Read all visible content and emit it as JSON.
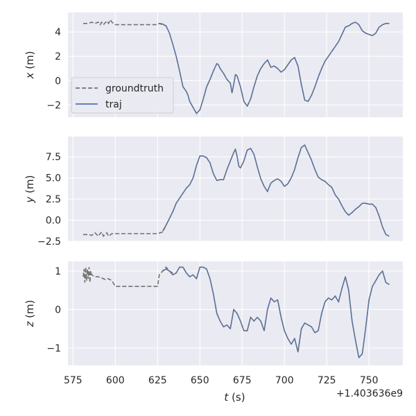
{
  "colors": {
    "panel_bg": "#EAEAF2",
    "grid": "#FFFFFF",
    "groundtruth": "#707070",
    "traj": "#4C72B0",
    "legend_bg": "#EAEAF2",
    "legend_border": "#CCCCCC"
  },
  "chart_data": {
    "type": "line",
    "shared_x": {
      "label": "t (s)",
      "offset_label": "+1.403636e9",
      "ticks": [
        575,
        600,
        625,
        650,
        675,
        700,
        725,
        750
      ],
      "range": [
        572,
        770
      ]
    },
    "legend": {
      "placement": "lower-left",
      "entries": [
        "groundtruth",
        "traj"
      ]
    },
    "panels": [
      {
        "ylabel": "x (m)",
        "yrange": [
          -3.0,
          5.6
        ],
        "yticks": [
          4,
          2,
          0,
          -2
        ],
        "groundtruth": [
          [
            581,
            4.7
          ],
          [
            584,
            4.7
          ],
          [
            586,
            4.8
          ],
          [
            588,
            4.7
          ],
          [
            590,
            4.8
          ],
          [
            591,
            4.6
          ],
          [
            592,
            4.8
          ],
          [
            593,
            4.6
          ],
          [
            595,
            4.9
          ],
          [
            596,
            4.7
          ],
          [
            597,
            5.0
          ],
          [
            598,
            4.8
          ],
          [
            600,
            4.6
          ],
          [
            610,
            4.6
          ],
          [
            620,
            4.6
          ],
          [
            625,
            4.6
          ],
          [
            626,
            4.7
          ],
          [
            628,
            4.6
          ],
          [
            630,
            4.5
          ]
        ],
        "traj": [
          [
            626,
            4.7
          ],
          [
            628,
            4.65
          ],
          [
            630,
            4.5
          ],
          [
            632,
            3.9
          ],
          [
            634,
            3.0
          ],
          [
            636,
            2.0
          ],
          [
            638,
            0.8
          ],
          [
            640,
            -0.5
          ],
          [
            642,
            -0.9
          ],
          [
            643,
            -1.2
          ],
          [
            644,
            -1.7
          ],
          [
            646,
            -2.2
          ],
          [
            648,
            -2.7
          ],
          [
            650,
            -2.4
          ],
          [
            652,
            -1.5
          ],
          [
            654,
            -0.5
          ],
          [
            656,
            0.1
          ],
          [
            658,
            0.8
          ],
          [
            660,
            1.4
          ],
          [
            661,
            1.3
          ],
          [
            662,
            1.0
          ],
          [
            664,
            0.6
          ],
          [
            666,
            0.1
          ],
          [
            668,
            -0.2
          ],
          [
            669,
            -1.0
          ],
          [
            670,
            -0.3
          ],
          [
            671,
            0.5
          ],
          [
            672,
            0.4
          ],
          [
            674,
            -0.5
          ],
          [
            676,
            -1.7
          ],
          [
            678,
            -2.1
          ],
          [
            680,
            -1.5
          ],
          [
            682,
            -0.5
          ],
          [
            684,
            0.4
          ],
          [
            686,
            1.0
          ],
          [
            688,
            1.4
          ],
          [
            690,
            1.7
          ],
          [
            692,
            1.1
          ],
          [
            694,
            1.2
          ],
          [
            696,
            1.0
          ],
          [
            698,
            0.7
          ],
          [
            700,
            0.9
          ],
          [
            702,
            1.3
          ],
          [
            704,
            1.7
          ],
          [
            706,
            1.9
          ],
          [
            708,
            1.2
          ],
          [
            710,
            -0.3
          ],
          [
            712,
            -1.6
          ],
          [
            714,
            -1.7
          ],
          [
            716,
            -1.2
          ],
          [
            718,
            -0.5
          ],
          [
            720,
            0.3
          ],
          [
            722,
            1.0
          ],
          [
            724,
            1.6
          ],
          [
            726,
            2.0
          ],
          [
            728,
            2.4
          ],
          [
            730,
            2.8
          ],
          [
            732,
            3.2
          ],
          [
            734,
            3.8
          ],
          [
            736,
            4.4
          ],
          [
            738,
            4.5
          ],
          [
            740,
            4.7
          ],
          [
            742,
            4.8
          ],
          [
            744,
            4.6
          ],
          [
            746,
            4.1
          ],
          [
            748,
            3.9
          ],
          [
            750,
            3.8
          ],
          [
            752,
            3.7
          ],
          [
            754,
            3.9
          ],
          [
            756,
            4.4
          ],
          [
            758,
            4.6
          ],
          [
            760,
            4.7
          ],
          [
            762,
            4.7
          ]
        ]
      },
      {
        "ylabel": "y (m)",
        "yrange": [
          -2.5,
          9.9
        ],
        "yticks": [
          7.5,
          5.0,
          2.5,
          0.0,
          -2.5
        ],
        "groundtruth": [
          [
            581,
            -1.7
          ],
          [
            584,
            -1.7
          ],
          [
            586,
            -1.8
          ],
          [
            588,
            -1.5
          ],
          [
            590,
            -1.9
          ],
          [
            591,
            -1.6
          ],
          [
            592,
            -1.4
          ],
          [
            593,
            -1.9
          ],
          [
            595,
            -1.5
          ],
          [
            596,
            -1.9
          ],
          [
            598,
            -1.6
          ],
          [
            600,
            -1.6
          ],
          [
            610,
            -1.6
          ],
          [
            620,
            -1.6
          ],
          [
            625,
            -1.6
          ],
          [
            628,
            -1.4
          ],
          [
            630,
            -0.6
          ]
        ],
        "traj": [
          [
            628,
            -1.3
          ],
          [
            630,
            -0.6
          ],
          [
            632,
            0.2
          ],
          [
            634,
            1.0
          ],
          [
            636,
            2.0
          ],
          [
            638,
            2.6
          ],
          [
            640,
            3.2
          ],
          [
            642,
            3.8
          ],
          [
            644,
            4.2
          ],
          [
            646,
            5.0
          ],
          [
            648,
            6.5
          ],
          [
            650,
            7.6
          ],
          [
            652,
            7.6
          ],
          [
            654,
            7.4
          ],
          [
            656,
            6.8
          ],
          [
            658,
            5.5
          ],
          [
            660,
            4.7
          ],
          [
            662,
            4.8
          ],
          [
            664,
            4.8
          ],
          [
            666,
            6.0
          ],
          [
            668,
            7.0
          ],
          [
            670,
            8.0
          ],
          [
            671,
            8.4
          ],
          [
            672,
            7.6
          ],
          [
            673,
            6.4
          ],
          [
            674,
            6.2
          ],
          [
            676,
            7.0
          ],
          [
            678,
            8.3
          ],
          [
            680,
            8.5
          ],
          [
            682,
            7.8
          ],
          [
            684,
            6.3
          ],
          [
            686,
            4.9
          ],
          [
            688,
            4.0
          ],
          [
            690,
            3.4
          ],
          [
            692,
            4.4
          ],
          [
            694,
            4.7
          ],
          [
            696,
            4.9
          ],
          [
            698,
            4.6
          ],
          [
            700,
            4.0
          ],
          [
            702,
            4.3
          ],
          [
            704,
            5.0
          ],
          [
            706,
            6.0
          ],
          [
            708,
            7.4
          ],
          [
            710,
            8.6
          ],
          [
            712,
            8.9
          ],
          [
            714,
            8.0
          ],
          [
            716,
            7.1
          ],
          [
            718,
            6.0
          ],
          [
            720,
            5.1
          ],
          [
            722,
            4.8
          ],
          [
            724,
            4.6
          ],
          [
            726,
            4.2
          ],
          [
            728,
            3.9
          ],
          [
            730,
            3.0
          ],
          [
            732,
            2.5
          ],
          [
            734,
            1.7
          ],
          [
            736,
            1.0
          ],
          [
            738,
            0.6
          ],
          [
            740,
            0.9
          ],
          [
            742,
            1.3
          ],
          [
            744,
            1.6
          ],
          [
            746,
            2.0
          ],
          [
            748,
            2.0
          ],
          [
            750,
            1.9
          ],
          [
            752,
            1.9
          ],
          [
            754,
            1.5
          ],
          [
            756,
            0.5
          ],
          [
            758,
            -0.8
          ],
          [
            760,
            -1.7
          ],
          [
            762,
            -1.9
          ]
        ]
      },
      {
        "ylabel": "z (m)",
        "yrange": [
          -1.45,
          1.25
        ],
        "yticks": [
          1,
          0,
          -1
        ],
        "groundtruth": [
          [
            581,
            0.85
          ],
          [
            581.5,
            1.05
          ],
          [
            582,
            0.7
          ],
          [
            582.5,
            1.1
          ],
          [
            583,
            0.75
          ],
          [
            583.5,
            1.05
          ],
          [
            584,
            0.8
          ],
          [
            584.5,
            1.1
          ],
          [
            585,
            0.7
          ],
          [
            585.5,
            1.0
          ],
          [
            586,
            0.9
          ],
          [
            588,
            0.85
          ],
          [
            590,
            0.85
          ],
          [
            592,
            0.82
          ],
          [
            594,
            0.78
          ],
          [
            596,
            0.8
          ],
          [
            598,
            0.75
          ],
          [
            600,
            0.6
          ],
          [
            610,
            0.6
          ],
          [
            620,
            0.6
          ],
          [
            625,
            0.6
          ],
          [
            626,
            0.9
          ],
          [
            628,
            1.0
          ],
          [
            630,
            1.1
          ],
          [
            632,
            1.0
          ],
          [
            634,
            0.95
          ]
        ],
        "traj": [
          [
            628,
            1.0
          ],
          [
            630,
            1.05
          ],
          [
            632,
            1.0
          ],
          [
            634,
            0.9
          ],
          [
            636,
            0.95
          ],
          [
            638,
            1.1
          ],
          [
            640,
            1.1
          ],
          [
            642,
            0.95
          ],
          [
            644,
            0.85
          ],
          [
            646,
            0.9
          ],
          [
            648,
            0.8
          ],
          [
            650,
            1.1
          ],
          [
            652,
            1.1
          ],
          [
            654,
            1.05
          ],
          [
            656,
            0.8
          ],
          [
            658,
            0.4
          ],
          [
            660,
            -0.1
          ],
          [
            662,
            -0.3
          ],
          [
            664,
            -0.45
          ],
          [
            666,
            -0.4
          ],
          [
            668,
            -0.5
          ],
          [
            670,
            0.0
          ],
          [
            672,
            -0.1
          ],
          [
            674,
            -0.3
          ],
          [
            676,
            -0.55
          ],
          [
            678,
            -0.55
          ],
          [
            680,
            -0.2
          ],
          [
            682,
            -0.3
          ],
          [
            684,
            -0.2
          ],
          [
            686,
            -0.3
          ],
          [
            688,
            -0.55
          ],
          [
            690,
            0.0
          ],
          [
            692,
            0.3
          ],
          [
            694,
            0.2
          ],
          [
            696,
            0.25
          ],
          [
            698,
            -0.2
          ],
          [
            700,
            -0.55
          ],
          [
            702,
            -0.75
          ],
          [
            704,
            -0.9
          ],
          [
            706,
            -0.75
          ],
          [
            708,
            -1.1
          ],
          [
            710,
            -0.5
          ],
          [
            712,
            -0.35
          ],
          [
            714,
            -0.4
          ],
          [
            716,
            -0.45
          ],
          [
            718,
            -0.6
          ],
          [
            720,
            -0.55
          ],
          [
            722,
            -0.1
          ],
          [
            724,
            0.2
          ],
          [
            726,
            0.3
          ],
          [
            728,
            0.25
          ],
          [
            730,
            0.35
          ],
          [
            732,
            0.2
          ],
          [
            734,
            0.55
          ],
          [
            736,
            0.85
          ],
          [
            738,
            0.5
          ],
          [
            740,
            -0.3
          ],
          [
            742,
            -0.8
          ],
          [
            744,
            -1.25
          ],
          [
            746,
            -1.15
          ],
          [
            748,
            -0.5
          ],
          [
            750,
            0.25
          ],
          [
            752,
            0.6
          ],
          [
            754,
            0.75
          ],
          [
            756,
            0.9
          ],
          [
            758,
            1.0
          ],
          [
            760,
            0.7
          ],
          [
            762,
            0.65
          ]
        ]
      }
    ]
  }
}
